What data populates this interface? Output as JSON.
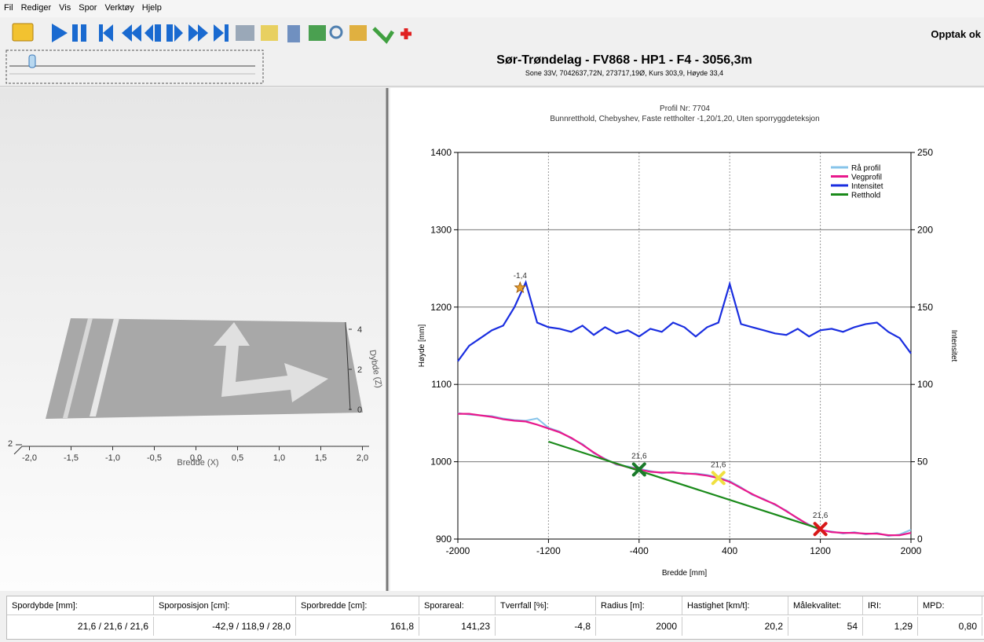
{
  "menu": [
    "Fil",
    "Rediger",
    "Vis",
    "Spor",
    "Verktøy",
    "Hjelp"
  ],
  "status": "Opptak ok",
  "header": {
    "title": "Sør-Trøndelag - FV868 - HP1 - F4 - 3056,3m",
    "subtitle": "Sone 33V, 7042637,72N, 273717,19Ø, Kurs 303,9, Høyde 33,4"
  },
  "surface_plot": {
    "xlabel": "Bredde (X)",
    "zlabel": "Dybde (Z)",
    "xticks": [
      {
        "value": -2,
        "label": "-2,0"
      },
      {
        "value": -1.5,
        "label": "-1,5"
      },
      {
        "value": -1,
        "label": "-1,0"
      },
      {
        "value": -0.5,
        "label": "-0,5"
      },
      {
        "value": 0,
        "label": "0,0"
      },
      {
        "value": 0.5,
        "label": "0,5"
      },
      {
        "value": 1,
        "label": "1,0"
      },
      {
        "value": 1.5,
        "label": "1,5"
      },
      {
        "value": 2,
        "label": "2,0"
      }
    ],
    "zticks": [
      4,
      2,
      0
    ],
    "yticks": [
      2
    ]
  },
  "chart_data": {
    "type": "line",
    "title": "Profil Nr: 7704",
    "subtitle": "Bunnretthold, Chebyshev, Faste rettholter -1,20/1,20, Uten sporryggdeteksjon",
    "xlabel": "Bredde [mm]",
    "ylabel": "Høyde [mm]",
    "y2label": "Intensitet",
    "xlim": [
      -2000,
      2000
    ],
    "xticks": [
      -2000,
      -1200,
      -400,
      400,
      1200,
      2000
    ],
    "ylim": [
      900,
      1400
    ],
    "yticks": [
      900,
      1000,
      1100,
      1200,
      1300,
      1400
    ],
    "y2lim": [
      0,
      250
    ],
    "y2ticks": [
      0,
      50,
      100,
      150,
      200,
      250
    ],
    "grid": true,
    "legend": "upper right",
    "x": [
      -2000,
      -1900,
      -1800,
      -1700,
      -1600,
      -1500,
      -1400,
      -1300,
      -1200,
      -1100,
      -1000,
      -900,
      -800,
      -700,
      -600,
      -500,
      -400,
      -300,
      -200,
      -100,
      0,
      100,
      200,
      300,
      400,
      500,
      600,
      700,
      800,
      900,
      1000,
      1100,
      1200,
      1300,
      1400,
      1500,
      1600,
      1700,
      1800,
      1900,
      2000
    ],
    "series": [
      {
        "name": "Rå profil",
        "color": "#87c4ea",
        "values": [
          1063,
          1061,
          1060,
          1059,
          1056,
          1054,
          1053,
          1056,
          1044,
          1039,
          1030,
          1023,
          1011,
          1004,
          996,
          994,
          991,
          988,
          985,
          987,
          984,
          985,
          983,
          980,
          975,
          967,
          957,
          952,
          944,
          937,
          926,
          919,
          911,
          910,
          907,
          909,
          906,
          908,
          904,
          906,
          912
        ]
      },
      {
        "name": "Vegprofil",
        "color": "#e8188c",
        "values": [
          1062,
          1062,
          1060,
          1058,
          1055,
          1053,
          1052,
          1048,
          1043,
          1038,
          1031,
          1022,
          1012,
          1003,
          997,
          993,
          990,
          987,
          986,
          986,
          985,
          984,
          982,
          979,
          974,
          966,
          958,
          951,
          945,
          936,
          927,
          918,
          912,
          909,
          908,
          908,
          907,
          907,
          905,
          905,
          908
        ]
      },
      {
        "name": "Intensitet",
        "color": "#1a2ee0",
        "axis": "y2",
        "values": [
          115,
          125,
          130,
          135,
          138,
          150,
          166,
          140,
          137,
          136,
          134,
          138,
          132,
          137,
          133,
          135,
          131,
          136,
          134,
          140,
          137,
          131,
          137,
          140,
          165,
          139,
          137,
          135,
          133,
          132,
          136,
          131,
          135,
          136,
          134,
          137,
          139,
          140,
          134,
          130,
          120
        ]
      },
      {
        "name": "Retthold",
        "color": "#1a8a1a",
        "x": [
          -1200,
          1200
        ],
        "values": [
          1026,
          913
        ]
      }
    ],
    "markers": [
      {
        "shape": "star",
        "color": "#e8a030",
        "x": -1450,
        "y": 1225,
        "label": "-1,4"
      },
      {
        "shape": "cross",
        "color": "#1a7a2a",
        "x": -400,
        "y": 990,
        "label": "21,6"
      },
      {
        "shape": "cross",
        "color": "#f0e040",
        "x": 300,
        "y": 979,
        "label": "21,6"
      },
      {
        "shape": "cross",
        "color": "#d81818",
        "x": 1200,
        "y": 913,
        "label": "21,6"
      }
    ]
  },
  "table": {
    "headers": [
      "Spordybde [mm]:",
      "Sporposisjon [cm]:",
      "Sporbredde [cm]:",
      "Sporareal:",
      "Tverrfall [%]:",
      "Radius [m]:",
      "Hastighet [km/t]:",
      "Målekvalitet:",
      "IRI:",
      "MPD:"
    ],
    "values": [
      "21,6 / 21,6 / 21,6",
      "-42,9 / 118,9 / 28,0",
      "161,8",
      "141,23",
      "-4,8",
      "2000",
      "20,2",
      "54",
      "1,29",
      "0,80"
    ]
  }
}
